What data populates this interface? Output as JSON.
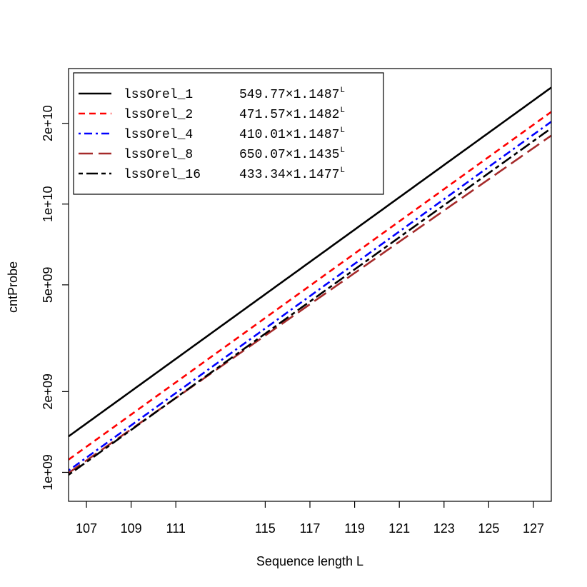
{
  "chart_data": {
    "type": "line",
    "xlabel": "Sequence length L",
    "ylabel": "cntProbe",
    "y_scale": "log",
    "x_ticks": [
      107,
      109,
      111,
      115,
      117,
      119,
      121,
      123,
      125,
      127
    ],
    "y_ticks": [
      {
        "value": 1000000000,
        "label": "1e+09"
      },
      {
        "value": 2000000000,
        "label": "2e+09"
      },
      {
        "value": 5000000000,
        "label": "5e+09"
      },
      {
        "value": 10000000000,
        "label": "1e+10"
      },
      {
        "value": 20000000000,
        "label": "2e+10"
      }
    ],
    "xlim": [
      106.2,
      127.8
    ],
    "ylim": [
      780000000.0,
      32000000000.0
    ],
    "legend_position": "top-left",
    "grid": false,
    "series": [
      {
        "name": "lssOrel_1",
        "a": 549.77,
        "b": 1.1487,
        "formula": "549.77×1.1487",
        "color": "#000000",
        "dash": "solid"
      },
      {
        "name": "lssOrel_2",
        "a": 471.57,
        "b": 1.1482,
        "formula": "471.57×1.1482",
        "color": "#ff0000",
        "dash": "dashed"
      },
      {
        "name": "lssOrel_4",
        "a": 410.01,
        "b": 1.1487,
        "formula": "410.01×1.1487",
        "color": "#0000ff",
        "dash": "dotdash"
      },
      {
        "name": "lssOrel_8",
        "a": 650.07,
        "b": 1.1435,
        "formula": "650.07×1.1435",
        "color": "#a52a2a",
        "dash": "longdash"
      },
      {
        "name": "lssOrel_16",
        "a": 433.34,
        "b": 1.1477,
        "formula": "433.34×1.1477",
        "color": "#000000",
        "dash": "twodash"
      }
    ],
    "exponent_label": "L"
  }
}
